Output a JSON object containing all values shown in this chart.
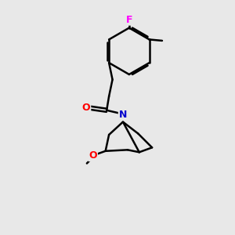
{
  "background_color": "#e8e8e8",
  "bond_color": "#000000",
  "bond_width": 1.8,
  "atom_colors": {
    "O": "#ff0000",
    "N": "#0000cd",
    "F": "#ff00ff",
    "C": "#000000"
  },
  "figsize": [
    3.0,
    3.0
  ],
  "dpi": 100
}
